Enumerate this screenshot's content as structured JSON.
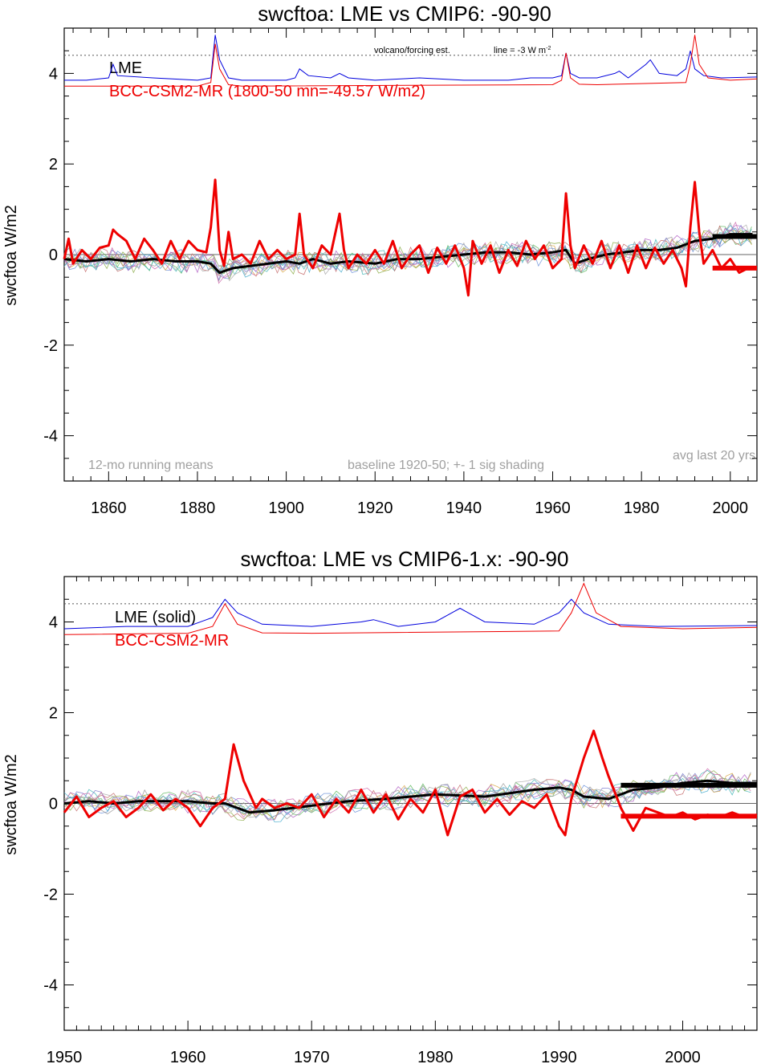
{
  "chart_data": [
    {
      "type": "line",
      "title": "swcftoa: LME vs CMIP6: -90-90",
      "ylabel": "swcftoa W/m2",
      "xlim": [
        1850,
        2006
      ],
      "ylim": [
        -5,
        5
      ],
      "xticks": [
        1860,
        1880,
        1900,
        1920,
        1940,
        1960,
        1980,
        2000
      ],
      "yticks": [
        -4,
        -2,
        0,
        2,
        4
      ],
      "zero_line": true,
      "legend": {
        "placement": "top-left",
        "entries": [
          {
            "label": "LME",
            "color": "#000000"
          },
          {
            "label": "BCC-CSM2-MR (1800-50 mn=-49.57 W/m2)",
            "color": "#ee0000"
          }
        ]
      },
      "annotations": {
        "volcano_label": "volcano/forcing est.",
        "line_label": "line = -3 W m",
        "line_label_sup": "-2",
        "bottom_left": "12-mo running means",
        "bottom_center": "baseline 1920-50; +- 1 sig shading",
        "bottom_right": "avg last 20 yrs"
      },
      "reference_line_y": 4.4,
      "series": [
        {
          "name": "LME",
          "color": "#000000",
          "x": [
            1850,
            1855,
            1860,
            1865,
            1870,
            1875,
            1880,
            1883,
            1885,
            1888,
            1892,
            1896,
            1900,
            1903,
            1906,
            1910,
            1914,
            1920,
            1925,
            1930,
            1935,
            1940,
            1945,
            1950,
            1955,
            1960,
            1963,
            1965,
            1968,
            1972,
            1976,
            1980,
            1984,
            1988,
            1992,
            1996,
            2000,
            2005
          ],
          "y": [
            -0.1,
            -0.15,
            -0.1,
            -0.15,
            -0.1,
            -0.15,
            -0.15,
            -0.2,
            -0.4,
            -0.3,
            -0.25,
            -0.2,
            -0.15,
            -0.2,
            -0.1,
            -0.2,
            -0.15,
            -0.2,
            -0.1,
            -0.1,
            -0.05,
            0.0,
            0.05,
            0.05,
            0.0,
            0.05,
            0.1,
            -0.2,
            -0.1,
            0.0,
            0.05,
            0.1,
            0.1,
            0.15,
            0.3,
            0.35,
            0.45,
            0.45
          ]
        },
        {
          "name": "BCC-CSM2-MR",
          "color": "#ee0000",
          "x": [
            1850,
            1851,
            1852,
            1854,
            1856,
            1858,
            1860,
            1861,
            1862,
            1864,
            1866,
            1868,
            1870,
            1872,
            1874,
            1876,
            1878,
            1880,
            1882,
            1883,
            1884,
            1885,
            1886,
            1887,
            1888,
            1890,
            1892,
            1894,
            1896,
            1898,
            1900,
            1902,
            1903,
            1904,
            1906,
            1908,
            1910,
            1912,
            1913,
            1914,
            1916,
            1918,
            1920,
            1922,
            1924,
            1926,
            1928,
            1930,
            1932,
            1934,
            1936,
            1938,
            1940,
            1941,
            1942,
            1944,
            1946,
            1948,
            1950,
            1952,
            1954,
            1956,
            1958,
            1960,
            1962,
            1963,
            1964,
            1965,
            1967,
            1969,
            1971,
            1973,
            1975,
            1977,
            1979,
            1981,
            1983,
            1985,
            1987,
            1989,
            1990,
            1991,
            1992,
            1993,
            1994,
            1996,
            1998,
            2000,
            2002,
            2004,
            2006
          ],
          "y": [
            -0.1,
            0.35,
            -0.2,
            0.1,
            -0.1,
            0.15,
            0.2,
            0.55,
            0.45,
            0.3,
            -0.1,
            0.35,
            0.1,
            -0.2,
            0.3,
            -0.1,
            0.3,
            0.1,
            0.05,
            0.6,
            1.65,
            0.1,
            -0.25,
            0.5,
            -0.1,
            0.0,
            -0.2,
            0.3,
            -0.1,
            0.1,
            -0.1,
            0.0,
            0.9,
            0.0,
            -0.3,
            0.2,
            0.0,
            0.9,
            0.1,
            -0.3,
            0.0,
            -0.2,
            0.1,
            -0.2,
            0.3,
            -0.3,
            0.0,
            0.2,
            -0.4,
            0.15,
            -0.2,
            0.2,
            -0.3,
            -0.9,
            0.3,
            -0.2,
            0.2,
            -0.4,
            0.1,
            -0.25,
            0.3,
            -0.1,
            0.2,
            -0.3,
            -0.1,
            1.35,
            0.2,
            -0.3,
            0.2,
            -0.2,
            0.3,
            -0.3,
            0.2,
            -0.4,
            0.2,
            -0.3,
            0.15,
            -0.2,
            0.1,
            -0.3,
            -0.7,
            0.6,
            1.6,
            0.5,
            -0.2,
            0.1,
            -0.3,
            -0.1,
            -0.4,
            -0.3,
            -0.3
          ]
        }
      ],
      "avg_bars": [
        {
          "series": "LME",
          "x": [
            1996,
            2006
          ],
          "y": 0.4,
          "color": "#000000"
        },
        {
          "series": "BCC-CSM2-MR",
          "x": [
            1996,
            2006
          ],
          "y": -0.3,
          "color": "#ee0000"
        }
      ],
      "forcing_lines": [
        {
          "color": "#0000dd",
          "x": [
            1850,
            1855,
            1860,
            1861,
            1862,
            1870,
            1880,
            1883,
            1884,
            1885,
            1887,
            1890,
            1900,
            1902,
            1903,
            1905,
            1910,
            1912,
            1914,
            1920,
            1930,
            1940,
            1950,
            1955,
            1960,
            1962,
            1963,
            1964,
            1966,
            1970,
            1974,
            1975,
            1977,
            1981,
            1982,
            1984,
            1988,
            1990,
            1991,
            1992,
            1994,
            1998,
            2006
          ],
          "y": [
            3.85,
            3.85,
            3.9,
            4.2,
            3.95,
            3.9,
            3.85,
            3.9,
            4.85,
            4.3,
            3.9,
            3.85,
            3.85,
            3.9,
            4.1,
            3.95,
            3.9,
            4.0,
            3.9,
            3.85,
            3.9,
            3.85,
            3.85,
            3.9,
            3.9,
            3.95,
            4.45,
            4.0,
            3.9,
            3.9,
            4.0,
            4.05,
            3.9,
            4.2,
            4.3,
            4.0,
            3.95,
            4.1,
            4.5,
            4.1,
            3.95,
            3.9,
            3.92
          ]
        },
        {
          "color": "#ee0000",
          "x": [
            1850,
            1880,
            1883,
            1884,
            1885,
            1887,
            1890,
            1960,
            1962,
            1963,
            1964,
            1966,
            1970,
            1990,
            1991,
            1992,
            1993,
            1995,
            2000,
            2006
          ],
          "y": [
            3.72,
            3.72,
            3.8,
            4.65,
            4.1,
            3.75,
            3.72,
            3.75,
            3.85,
            4.45,
            3.9,
            3.76,
            3.75,
            3.8,
            4.2,
            4.85,
            4.2,
            3.9,
            3.85,
            3.88
          ]
        }
      ]
    },
    {
      "type": "line",
      "title": "swcftoa: LME vs CMIP6-1.x: -90-90",
      "ylabel": "swcftoa W/m2",
      "xlim": [
        1950,
        2006
      ],
      "ylim": [
        -5,
        5
      ],
      "xticks": [
        1950,
        1960,
        1970,
        1980,
        1990,
        2000
      ],
      "yticks": [
        -4,
        -2,
        0,
        2,
        4
      ],
      "zero_line": true,
      "legend": {
        "placement": "top-left",
        "entries": [
          {
            "label": "LME (solid)",
            "color": "#000000"
          },
          {
            "label": "BCC-CSM2-MR",
            "color": "#ee0000"
          }
        ]
      },
      "reference_line_y": 4.4,
      "series": [
        {
          "name": "LME",
          "color": "#000000",
          "x": [
            1950,
            1952,
            1954,
            1956,
            1958,
            1960,
            1962,
            1963,
            1964,
            1965,
            1967,
            1970,
            1973,
            1976,
            1980,
            1984,
            1988,
            1990,
            1991,
            1992,
            1994,
            1996,
            1998,
            2000,
            2002,
            2004,
            2006
          ],
          "y": [
            0.0,
            0.05,
            0.0,
            0.05,
            0.05,
            0.05,
            0.0,
            0.0,
            -0.1,
            -0.2,
            -0.15,
            -0.05,
            0.05,
            0.1,
            0.2,
            0.15,
            0.3,
            0.35,
            0.3,
            0.15,
            0.1,
            0.3,
            0.35,
            0.45,
            0.5,
            0.45,
            0.45
          ]
        },
        {
          "name": "BCC-CSM2-MR",
          "color": "#ee0000",
          "x": [
            1950,
            1951,
            1952,
            1953,
            1954,
            1955,
            1956,
            1957,
            1958,
            1959,
            1960,
            1961,
            1962,
            1963,
            1963.7,
            1964.5,
            1965.5,
            1966,
            1967,
            1968,
            1969,
            1970,
            1971,
            1972,
            1973,
            1974,
            1975,
            1976,
            1977,
            1978,
            1979,
            1980,
            1981,
            1982,
            1983,
            1984,
            1985,
            1986,
            1987,
            1988,
            1989,
            1990,
            1990.5,
            1991,
            1992,
            1992.8,
            1993.5,
            1994,
            1995,
            1996,
            1997,
            1998,
            1999,
            2000,
            2001,
            2002,
            2003,
            2004,
            2005,
            2006
          ],
          "y": [
            -0.2,
            0.15,
            -0.3,
            -0.1,
            0.05,
            -0.3,
            -0.1,
            0.2,
            -0.15,
            0.1,
            -0.1,
            -0.5,
            -0.1,
            0.1,
            1.3,
            0.5,
            -0.1,
            0.1,
            -0.1,
            0.0,
            -0.1,
            0.2,
            -0.3,
            0.1,
            -0.2,
            0.3,
            -0.2,
            0.2,
            -0.35,
            0.1,
            -0.2,
            0.3,
            -0.7,
            0.15,
            0.3,
            -0.2,
            0.1,
            -0.25,
            0.05,
            -0.1,
            0.2,
            -0.5,
            -0.7,
            0.1,
            1.0,
            1.6,
            1.0,
            0.6,
            -0.1,
            -0.6,
            -0.1,
            -0.2,
            -0.3,
            -0.2,
            -0.35,
            -0.25,
            -0.3,
            -0.2,
            -0.3,
            -0.25
          ]
        }
      ],
      "avg_bars": [
        {
          "series": "LME",
          "x": [
            1995,
            2006
          ],
          "y": 0.4,
          "color": "#000000"
        },
        {
          "series": "BCC-CSM2-MR",
          "x": [
            1995,
            2006
          ],
          "y": -0.28,
          "color": "#ee0000"
        }
      ],
      "forcing_lines": [
        {
          "color": "#0000dd",
          "x": [
            1950,
            1955,
            1958,
            1960,
            1962,
            1963,
            1964,
            1966,
            1970,
            1974,
            1975,
            1977,
            1980,
            1982,
            1984,
            1988,
            1990,
            1991,
            1992,
            1994,
            1998,
            2006
          ],
          "y": [
            3.85,
            3.9,
            3.9,
            3.9,
            4.1,
            4.5,
            4.2,
            3.95,
            3.9,
            4.0,
            4.05,
            3.9,
            4.0,
            4.3,
            4.0,
            3.95,
            4.2,
            4.5,
            4.2,
            3.95,
            3.9,
            3.92
          ]
        },
        {
          "color": "#ee0000",
          "x": [
            1950,
            1960,
            1962,
            1963,
            1964,
            1966,
            1970,
            1990,
            1991,
            1992,
            1993,
            1995,
            2000,
            2006
          ],
          "y": [
            3.72,
            3.75,
            3.9,
            4.4,
            3.95,
            3.76,
            3.75,
            3.8,
            4.2,
            4.85,
            4.2,
            3.9,
            3.85,
            3.88
          ]
        }
      ]
    }
  ]
}
